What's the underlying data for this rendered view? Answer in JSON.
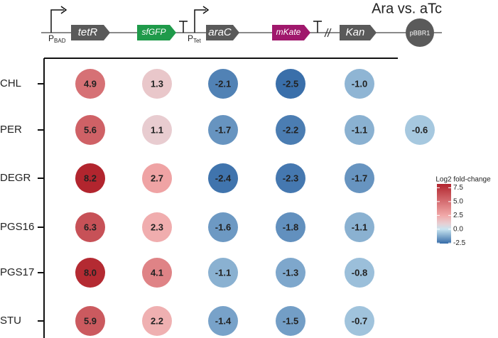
{
  "chart_data": {
    "type": "dotmatrix",
    "title": "Ara vs. aTc",
    "promoters": [
      {
        "main": "P",
        "sub": "BAD"
      },
      {
        "main": "P",
        "sub": "Tet"
      }
    ],
    "genes": [
      {
        "name": "tetR",
        "color": "#5a5a5a"
      },
      {
        "name": "sfGFP",
        "color": "#1f9a4a"
      },
      {
        "name": "araC",
        "color": "#5a5a5a"
      },
      {
        "name": "mKate",
        "color": "#a0186c"
      },
      {
        "name": "Kan",
        "color": "#5a5a5a"
      },
      {
        "name": "pBBR1",
        "color": "#5a5a5a"
      }
    ],
    "rows": [
      "CHL",
      "PER",
      "DEGR",
      "PGS16",
      "PGS17",
      "STU"
    ],
    "values": [
      [
        4.9,
        1.3,
        -2.1,
        -2.5,
        -1.0,
        null
      ],
      [
        5.6,
        1.1,
        -1.7,
        -2.2,
        -1.1,
        -0.6
      ],
      [
        8.2,
        2.7,
        -2.4,
        -2.3,
        -1.7,
        null
      ],
      [
        6.3,
        2.3,
        -1.6,
        -1.8,
        -1.1,
        null
      ],
      [
        8.0,
        4.1,
        -1.1,
        -1.3,
        -0.8,
        null
      ],
      [
        5.9,
        2.2,
        -1.4,
        -1.5,
        -0.7,
        null
      ]
    ],
    "value_labels": [
      [
        "4.9",
        "1.3",
        "-2.1",
        "-2.5",
        "-1.0",
        null
      ],
      [
        "5.6",
        "1.1",
        "-1.7",
        "-2.2",
        "-1.1",
        "-0.6"
      ],
      [
        "8.2",
        "2.7",
        "-2.4",
        "-2.3",
        "-1.7",
        null
      ],
      [
        "6.3",
        "2.3",
        "-1.6",
        "-1.8",
        "-1.1",
        null
      ],
      [
        "8.0",
        "4.1",
        "-1.1",
        "-1.3",
        "-0.8",
        null
      ],
      [
        "5.9",
        "2.2",
        "-1.4",
        "-1.5",
        "-0.7",
        null
      ]
    ],
    "colorbar_title": "Log2 fold-change",
    "clim": [
      -2.6,
      8.2
    ],
    "cticks": [
      7.5,
      {
        "value": 5,
        "label": "5.0"
      },
      2.5,
      {
        "value": 0,
        "label": "0.0"
      },
      -2.5
    ],
    "colorscale": [
      {
        "value": -2.5,
        "color": "#3a6faa"
      },
      {
        "value": 0,
        "color": "#c8e4f0"
      },
      {
        "value": 1,
        "color": "#e7cfd3"
      },
      {
        "value": 2.5,
        "color": "#f1a8a8"
      },
      {
        "value": 8.2,
        "color": "#b2252e"
      }
    ]
  }
}
